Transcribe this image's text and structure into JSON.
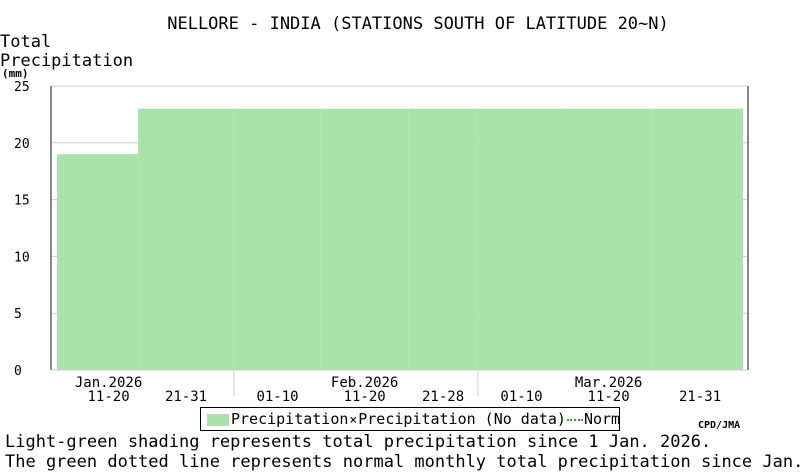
{
  "colors": {
    "precip_fill": "#aae3aa",
    "normal_line": "#2a9d2a",
    "grid": "#cccccc",
    "frame": "#888888"
  },
  "chart_data": {
    "type": "area",
    "title": "NELLORE - INDIA (STATIONS SOUTH OF LATITUDE 20~N)",
    "ylabel": [
      "Total",
      "Precipitation",
      "(mm)"
    ],
    "ylim": [
      0,
      25
    ],
    "yticks": [
      0,
      5,
      10,
      15,
      20,
      25
    ],
    "grid": true,
    "categories": [
      "Jan. 11-20",
      "Jan. 21-31",
      "Feb. 01-10",
      "Feb. 11-20",
      "Feb. 21-28",
      "Mar. 01-10",
      "Mar. 11-20",
      "Mar. 21-31"
    ],
    "x_tick_labels": [
      "11-20",
      "21-31",
      "01-10",
      "11-20",
      "21-28",
      "01-10",
      "11-20",
      "21-31"
    ],
    "month_labels": [
      "Jan.2026",
      "Feb.2026",
      "Mar.2026"
    ],
    "series": [
      {
        "name": "Precipitation",
        "values": [
          19,
          23,
          23,
          23,
          23,
          23,
          23,
          23
        ]
      }
    ]
  },
  "legend": {
    "items": [
      "Precipitation",
      "Precipitation (No data)",
      "Normal"
    ]
  },
  "credit": "CPD/JMA",
  "notes": [
    "Light-green shading represents total precipitation since 1 Jan. 2026.",
    "The green dotted line represents normal monthly total precipitation since Jan."
  ]
}
